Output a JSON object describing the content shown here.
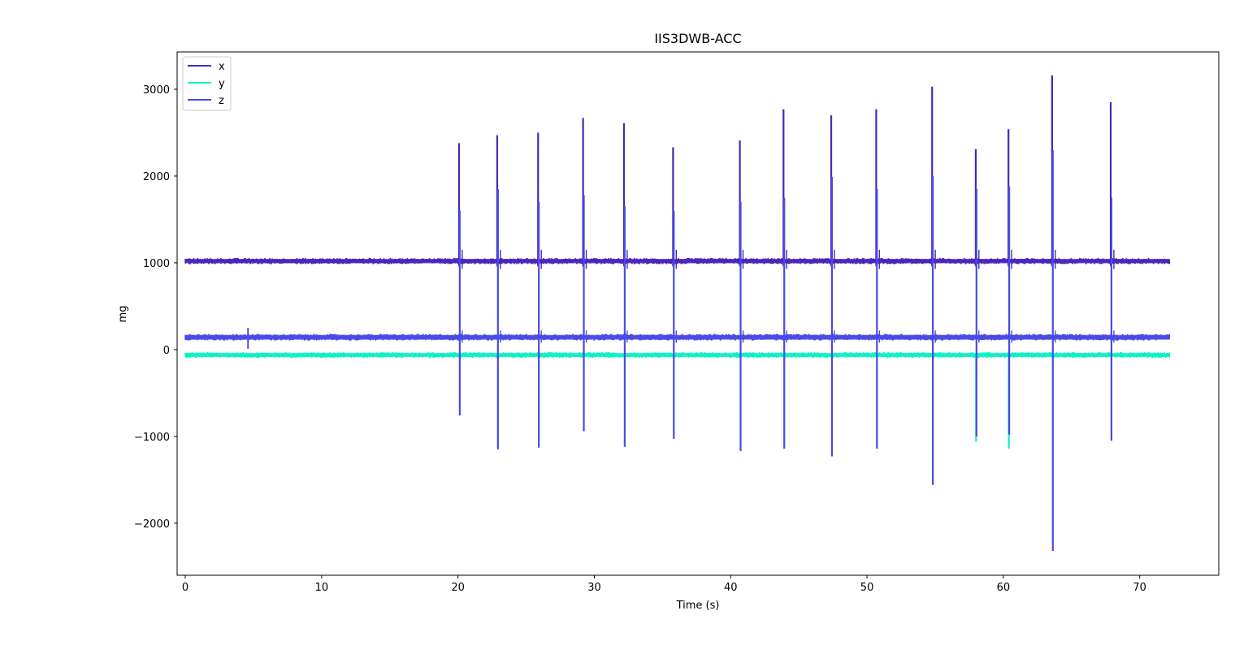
{
  "chart_data": {
    "type": "line",
    "title": "IIS3DWB-ACC",
    "xlabel": "Time (s)",
    "ylabel": "mg",
    "xlim": [
      -0.6,
      75.8
    ],
    "ylim": [
      -2600,
      3430
    ],
    "x_ticks": [
      0,
      10,
      20,
      30,
      40,
      50,
      60,
      70
    ],
    "y_ticks": [
      -2000,
      -1000,
      0,
      1000,
      2000,
      3000
    ],
    "x_tick_labels": [
      "0",
      "10",
      "20",
      "30",
      "40",
      "50",
      "60",
      "70"
    ],
    "y_tick_labels": [
      "−2000",
      "−1000",
      "0",
      "1000",
      "2000",
      "3000"
    ],
    "grid": false,
    "legend_position": "top-left",
    "x_range": [
      0,
      72.2
    ],
    "series": [
      {
        "name": "x",
        "color": "#4c27b8",
        "baseline": 1020,
        "noise_band": [
          985,
          1055
        ]
      },
      {
        "name": "y",
        "color": "#0df2c5",
        "baseline": -62,
        "noise_band": [
          -95,
          -30
        ]
      },
      {
        "name": "z",
        "color": "#4a4ae6",
        "baseline": 140,
        "noise_band": [
          105,
          180
        ]
      }
    ],
    "events": [
      {
        "t": 20.1,
        "x_max": 2380,
        "z_min": -760,
        "z_peak": 1600
      },
      {
        "t": 22.9,
        "x_max": 2470,
        "z_min": -1150,
        "z_peak": 1850
      },
      {
        "t": 25.9,
        "x_max": 2500,
        "z_min": -1130,
        "z_peak": 1700
      },
      {
        "t": 29.2,
        "x_max": 2670,
        "z_min": -940,
        "z_peak": 1780
      },
      {
        "t": 32.2,
        "x_max": 2610,
        "z_min": -1120,
        "z_peak": 1650
      },
      {
        "t": 35.8,
        "x_max": 2330,
        "z_min": -1030,
        "z_peak": 1600
      },
      {
        "t": 40.7,
        "x_max": 2410,
        "z_min": -1170,
        "z_peak": 1700
      },
      {
        "t": 43.9,
        "x_max": 2770,
        "z_min": -1140,
        "z_peak": 1750
      },
      {
        "t": 47.4,
        "x_max": 2700,
        "z_min": -1230,
        "z_peak": 1990
      },
      {
        "t": 50.7,
        "x_max": 2770,
        "z_min": -1140,
        "z_peak": 1850
      },
      {
        "t": 54.8,
        "x_max": 3030,
        "z_min": -1560,
        "z_peak": 2000
      },
      {
        "t": 58.0,
        "x_max": 2310,
        "z_min": -1000,
        "y_min": -1060,
        "z_peak": 1850
      },
      {
        "t": 60.4,
        "x_max": 2540,
        "z_min": -980,
        "y_min": -1140,
        "z_peak": 1880
      },
      {
        "t": 63.6,
        "x_max": 3160,
        "z_min": -2320,
        "z_peak": 2300
      },
      {
        "t": 67.9,
        "x_max": 2850,
        "z_min": -1050,
        "z_peak": 1750
      }
    ],
    "small_blip": {
      "t": 4.6,
      "z_max": 250,
      "z_min": 10
    }
  }
}
